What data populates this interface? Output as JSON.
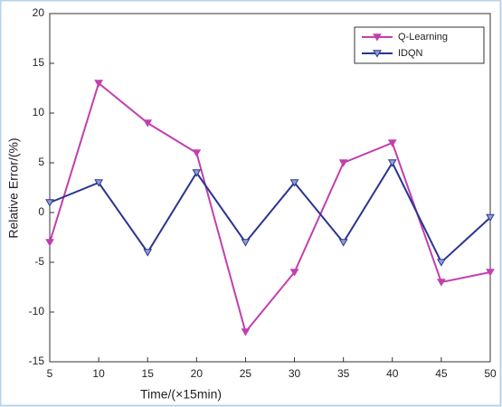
{
  "chart_data": {
    "type": "line",
    "x_label": "Time/(×15min)",
    "y_label": "Relative Error/(%)",
    "x": [
      5,
      10,
      15,
      20,
      25,
      30,
      35,
      40,
      45,
      50
    ],
    "series": [
      {
        "name": "Q-Learning",
        "color": "#c23fae",
        "values": [
          -3,
          13,
          9,
          6,
          -12,
          -6,
          5,
          7,
          -7,
          -6
        ]
      },
      {
        "name": "IDQN",
        "color": "#2b3590",
        "values": [
          1,
          3,
          -4,
          4,
          -3,
          3,
          -3,
          5,
          -5,
          -0.5
        ]
      }
    ],
    "xlim": [
      5,
      50
    ],
    "xticks": [
      5,
      10,
      15,
      20,
      25,
      30,
      35,
      40,
      45,
      50
    ],
    "ylim": [
      -15,
      20
    ],
    "yticks": [
      -15,
      -10,
      -5,
      0,
      5,
      10,
      15,
      20
    ],
    "grid": false,
    "legend": "top-right"
  }
}
